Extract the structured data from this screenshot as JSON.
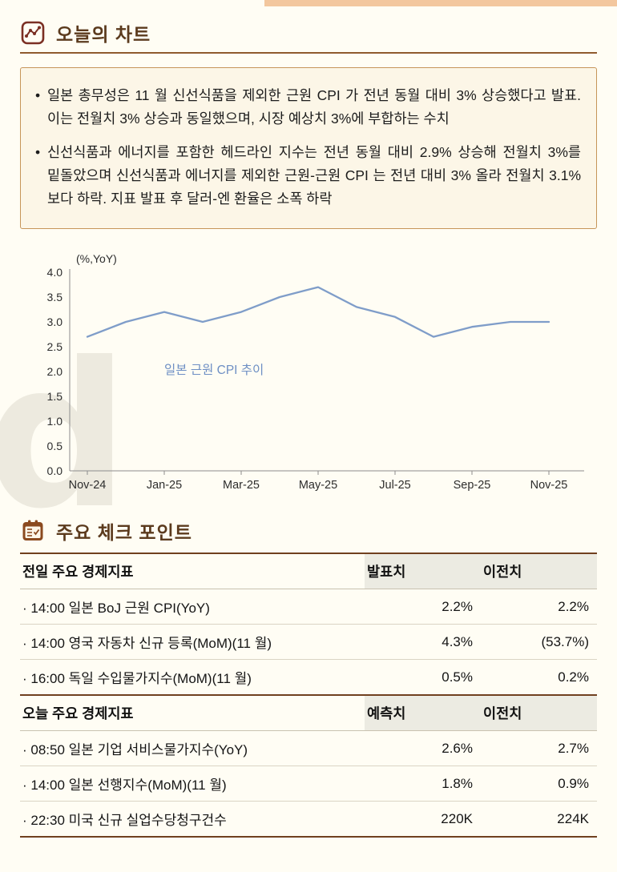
{
  "watermark": "d",
  "sections": {
    "chart": {
      "title": "오늘의 차트",
      "bullets": [
        "일본 총무성은 11 월 신선식품을 제외한 근원 CPI 가 전년 동월 대비 3% 상승했다고 발표. 이는 전월치 3% 상승과 동일했으며, 시장 예상치 3%에 부합하는 수치",
        "신선식품과 에너지를 포함한 헤드라인 지수는 전년 동월 대비 2.9% 상승해 전월치 3%를 밑돌았으며 신선식품과 에너지를 제외한 근원-근원 CPI 는 전년 대비 3% 올라 전월치 3.1%보다 하락. 지표 발표 후 달러-엔 환율은 소폭 하락"
      ]
    },
    "checkpoints": {
      "title": "주요 체크 포인트"
    }
  },
  "chart_data": {
    "type": "line",
    "title": "",
    "x": [
      "Nov-24",
      "Dec-24",
      "Jan-25",
      "Feb-25",
      "Mar-25",
      "Apr-25",
      "May-25",
      "Jun-25",
      "Jul-25",
      "Aug-25",
      "Sep-25",
      "Oct-25",
      "Nov-25"
    ],
    "values": [
      2.7,
      3.0,
      3.2,
      3.0,
      3.2,
      3.5,
      3.7,
      3.3,
      3.1,
      2.7,
      2.9,
      3.0,
      3.0
    ],
    "x_tick_step": 2,
    "xlabel": "",
    "ylabel": "(%,YoY)",
    "ylim": [
      0.0,
      4.0
    ],
    "ytick": 0.5,
    "grid": false,
    "legend": "none",
    "line_color": "#7F9DC9",
    "annotation": {
      "text": "일본 근원 CPI 추이",
      "x_index": 2.0,
      "y_value": 1.95,
      "color": "#6E8FC4"
    }
  },
  "tables": [
    {
      "header": {
        "label": "전일 주요 경제지표",
        "col1": "발표치",
        "col2": "이전치"
      },
      "rows": [
        {
          "label": "· 14:00 일본 BoJ 근원 CPI(YoY)",
          "col1": "2.2%",
          "col2": "2.2%"
        },
        {
          "label": "· 14:00 영국 자동차 신규 등록(MoM)(11 월)",
          "col1": "4.3%",
          "col2": "(53.7%)"
        },
        {
          "label": "· 16:00 독일 수입물가지수(MoM)(11 월)",
          "col1": "0.5%",
          "col2": "0.2%"
        }
      ]
    },
    {
      "header": {
        "label": "오늘 주요 경제지표",
        "col1": "예측치",
        "col2": "이전치"
      },
      "rows": [
        {
          "label": "· 08:50 일본 기업 서비스물가지수(YoY)",
          "col1": "2.6%",
          "col2": "2.7%"
        },
        {
          "label": "· 14:00 일본 선행지수(MoM)(11 월)",
          "col1": "1.8%",
          "col2": "0.9%"
        },
        {
          "label": "· 22:30 미국 신규 실업수당청구건수",
          "col1": "220K",
          "col2": "224K"
        }
      ]
    }
  ]
}
